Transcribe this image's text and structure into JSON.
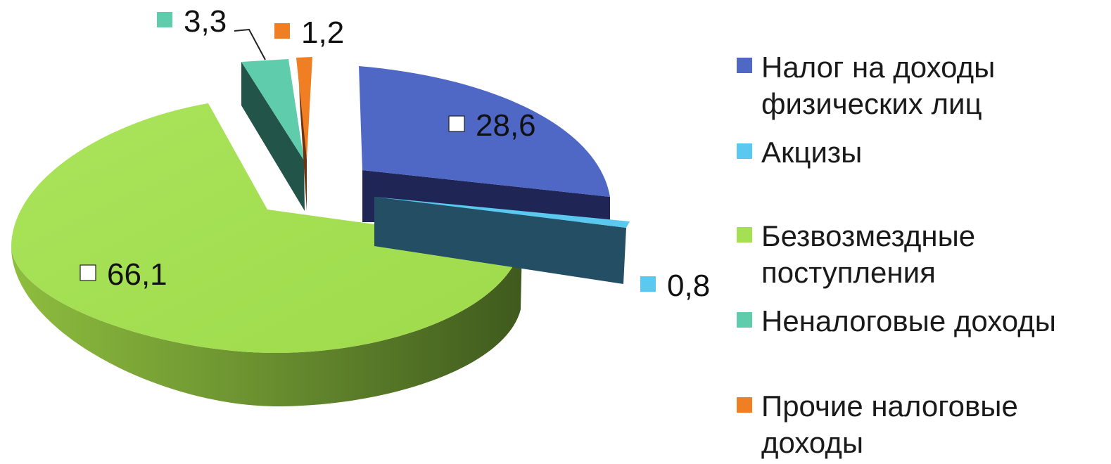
{
  "chart_data": {
    "type": "pie",
    "title": "",
    "style": "exploded-3d",
    "categories": [
      "Налог на доходы физических лиц",
      "Акцизы",
      "Безвозмездные поступления",
      "Неналоговые доходы",
      "Прочие налоговые доходы"
    ],
    "values": [
      28.6,
      0.8,
      66.1,
      3.3,
      1.2
    ],
    "value_labels": [
      "28,6",
      "0,8",
      "66,1",
      "3,3",
      "1,2"
    ],
    "colors": [
      "#4f68c6",
      "#5bc9ef",
      "#a5e052",
      "#5fcdac",
      "#f07e22"
    ],
    "legend_position": "right",
    "legend": [
      {
        "lines": [
          "Налог на доходы",
          "физических лиц"
        ],
        "color": "#4f68c6"
      },
      {
        "lines": [
          "Акцизы"
        ],
        "color": "#5bc9ef"
      },
      {
        "lines": [
          "Безвозмездные",
          "поступления"
        ],
        "color": "#a5e052"
      },
      {
        "lines": [
          "Неналоговые доходы"
        ],
        "color": "#5fcdac"
      },
      {
        "lines": [
          "Прочие налоговые",
          "доходы"
        ],
        "color": "#f07e22"
      }
    ]
  }
}
